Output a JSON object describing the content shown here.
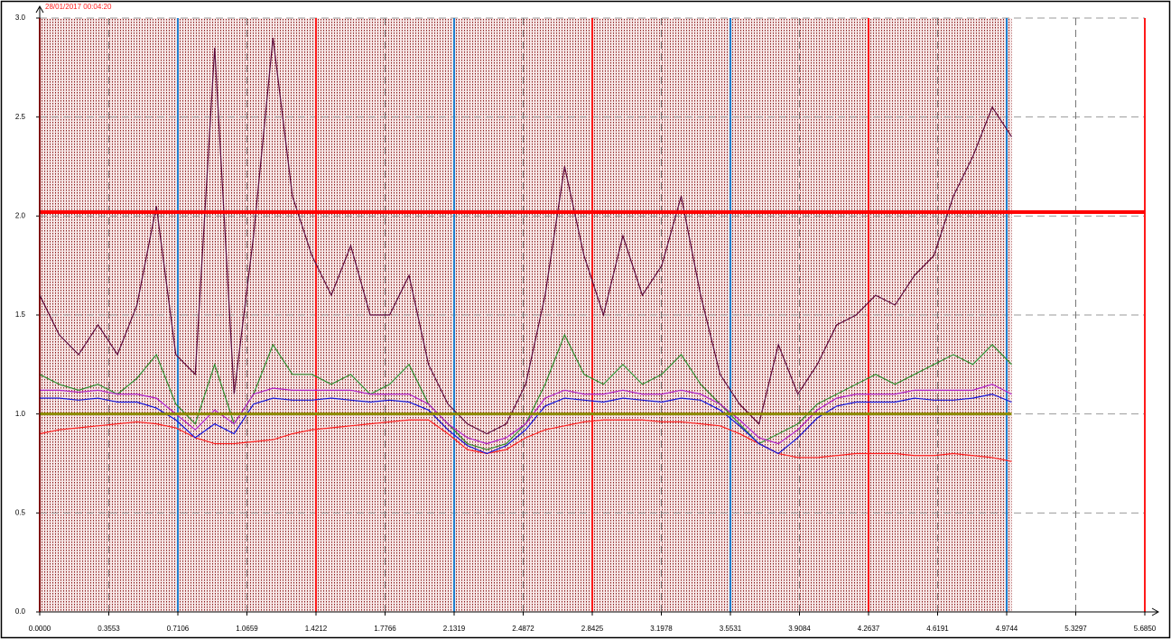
{
  "chart_data": {
    "type": "line",
    "title": "28/01/2017 00:04:20",
    "xlim": [
      0,
      5.685
    ],
    "xticks": [
      {
        "value": 0,
        "label": "0.0000"
      },
      {
        "value": 0.3553,
        "label": "0.3553"
      },
      {
        "value": 0.7106,
        "label": "0.7106"
      },
      {
        "value": 1.0659,
        "label": "1.0659"
      },
      {
        "value": 1.4212,
        "label": "1.4212"
      },
      {
        "value": 1.7766,
        "label": "1.7766"
      },
      {
        "value": 2.1319,
        "label": "2.1319"
      },
      {
        "value": 2.4872,
        "label": "2.4872"
      },
      {
        "value": 2.8425,
        "label": "2.8425"
      },
      {
        "value": 3.1978,
        "label": "3.1978"
      },
      {
        "value": 3.5531,
        "label": "3.5531"
      },
      {
        "value": 3.9084,
        "label": "3.9084"
      },
      {
        "value": 4.2637,
        "label": "4.2637"
      },
      {
        "value": 4.6191,
        "label": "4.6191"
      },
      {
        "value": 4.9744,
        "label": "4.9744"
      },
      {
        "value": 5.3297,
        "label": "5.3297"
      },
      {
        "value": 5.685,
        "label": "5.6850"
      }
    ],
    "ylim": [
      0,
      3
    ],
    "yticks": [
      {
        "value": 0,
        "label": "0.0"
      },
      {
        "value": 0.5,
        "label": "0.5"
      },
      {
        "value": 1,
        "label": "1.0"
      },
      {
        "value": 1.5,
        "label": "1.5"
      },
      {
        "value": 2,
        "label": "2.0"
      },
      {
        "value": 2.5,
        "label": "2.5"
      },
      {
        "value": 3,
        "label": "3.0"
      }
    ],
    "grid": true,
    "threshold": {
      "value": 2.02,
      "color": "#ff0000"
    },
    "cursors": [
      {
        "x": 0,
        "color": "#ff1a1a"
      },
      {
        "x": 0.7106,
        "color": "#1e7fd0"
      },
      {
        "x": 1.4212,
        "color": "#ff1a1a"
      },
      {
        "x": 2.1319,
        "color": "#1e7fd0"
      },
      {
        "x": 2.8425,
        "color": "#ff1a1a"
      },
      {
        "x": 3.5531,
        "color": "#1e7fd0"
      },
      {
        "x": 4.2637,
        "color": "#ff1a1a"
      },
      {
        "x": 4.9744,
        "color": "#1e7fd0"
      },
      {
        "x": 5.685,
        "color": "#ff1a1a"
      }
    ],
    "x": [
      0,
      0.1,
      0.2,
      0.3,
      0.4,
      0.5,
      0.6,
      0.7,
      0.8,
      0.9,
      1.0,
      1.1,
      1.2,
      1.3,
      1.4,
      1.5,
      1.6,
      1.7,
      1.8,
      1.9,
      2.0,
      2.1,
      2.2,
      2.3,
      2.4,
      2.5,
      2.6,
      2.7,
      2.8,
      2.9,
      3.0,
      3.1,
      3.2,
      3.3,
      3.4,
      3.5,
      3.6,
      3.7,
      3.8,
      3.9,
      4.0,
      4.1,
      4.2,
      4.3,
      4.4,
      4.5,
      4.6,
      4.7,
      4.8,
      4.9,
      5.0
    ],
    "series": [
      {
        "color": "#ff2020",
        "values": [
          0.9,
          0.92,
          0.93,
          0.94,
          0.95,
          0.96,
          0.95,
          0.93,
          0.88,
          0.85,
          0.85,
          0.86,
          0.87,
          0.9,
          0.92,
          0.93,
          0.94,
          0.95,
          0.96,
          0.97,
          0.97,
          0.9,
          0.82,
          0.8,
          0.82,
          0.88,
          0.92,
          0.94,
          0.96,
          0.97,
          0.97,
          0.97,
          0.96,
          0.96,
          0.95,
          0.94,
          0.9,
          0.85,
          0.8,
          0.78,
          0.78,
          0.79,
          0.8,
          0.8,
          0.8,
          0.79,
          0.79,
          0.8,
          0.79,
          0.78,
          0.76
        ]
      },
      {
        "color": "#5c0a3c",
        "values": [
          1.6,
          1.4,
          1.3,
          1.45,
          1.3,
          1.55,
          2.05,
          1.3,
          1.2,
          2.85,
          1.1,
          1.9,
          2.9,
          2.1,
          1.8,
          1.6,
          1.85,
          1.5,
          1.5,
          1.7,
          1.25,
          1.05,
          0.95,
          0.9,
          0.95,
          1.15,
          1.6,
          2.25,
          1.8,
          1.5,
          1.9,
          1.6,
          1.75,
          2.1,
          1.6,
          1.2,
          1.05,
          0.95,
          1.35,
          1.1,
          1.25,
          1.45,
          1.5,
          1.6,
          1.55,
          1.7,
          1.8,
          2.1,
          2.3,
          2.55,
          2.4
        ]
      },
      {
        "color": "#2e8b2e",
        "values": [
          1.2,
          1.15,
          1.12,
          1.15,
          1.1,
          1.18,
          1.3,
          1.05,
          0.95,
          1.25,
          0.95,
          1.1,
          1.35,
          1.2,
          1.2,
          1.15,
          1.2,
          1.1,
          1.15,
          1.25,
          1.05,
          0.95,
          0.85,
          0.82,
          0.85,
          0.95,
          1.15,
          1.4,
          1.2,
          1.15,
          1.25,
          1.15,
          1.2,
          1.3,
          1.15,
          1.05,
          0.95,
          0.85,
          0.9,
          0.95,
          1.05,
          1.1,
          1.15,
          1.2,
          1.15,
          1.2,
          1.25,
          1.3,
          1.25,
          1.35,
          1.25
        ]
      },
      {
        "color": "#b020c8",
        "values": [
          1.12,
          1.12,
          1.11,
          1.12,
          1.1,
          1.1,
          1.08,
          1.0,
          0.92,
          1.02,
          0.95,
          1.1,
          1.13,
          1.12,
          1.12,
          1.12,
          1.12,
          1.1,
          1.1,
          1.1,
          1.05,
          0.95,
          0.88,
          0.85,
          0.88,
          0.95,
          1.08,
          1.12,
          1.1,
          1.1,
          1.12,
          1.1,
          1.1,
          1.12,
          1.1,
          1.05,
          0.97,
          0.88,
          0.85,
          0.92,
          1.02,
          1.08,
          1.1,
          1.1,
          1.1,
          1.12,
          1.12,
          1.12,
          1.12,
          1.15,
          1.1
        ]
      },
      {
        "color": "#1414d8",
        "values": [
          1.08,
          1.08,
          1.07,
          1.08,
          1.06,
          1.06,
          1.03,
          0.97,
          0.88,
          0.95,
          0.9,
          1.05,
          1.08,
          1.07,
          1.07,
          1.08,
          1.07,
          1.06,
          1.07,
          1.06,
          1.02,
          0.92,
          0.84,
          0.8,
          0.84,
          0.92,
          1.04,
          1.08,
          1.07,
          1.06,
          1.08,
          1.07,
          1.06,
          1.08,
          1.07,
          1.02,
          0.94,
          0.85,
          0.8,
          0.88,
          0.98,
          1.04,
          1.06,
          1.06,
          1.06,
          1.08,
          1.07,
          1.07,
          1.08,
          1.1,
          1.06
        ]
      },
      {
        "color": "#8c8c00",
        "values": [
          1.0,
          1.0,
          1.0,
          1.0,
          1.0,
          1.0,
          1.0,
          1.0,
          1.0,
          1.0,
          1.0,
          1.0,
          1.0,
          1.0,
          1.0,
          1.0,
          1.0,
          1.0,
          1.0,
          1.0,
          1.0,
          1.0,
          1.0,
          1.0,
          1.0,
          1.0,
          1.0,
          1.0,
          1.0,
          1.0,
          1.0,
          1.0,
          1.0,
          1.0,
          1.0,
          1.0,
          1.0,
          1.0,
          1.0,
          1.0,
          1.0,
          1.0,
          1.0,
          1.0,
          1.0,
          1.0,
          1.0,
          1.0,
          1.0,
          1.0,
          1.0
        ]
      }
    ]
  }
}
